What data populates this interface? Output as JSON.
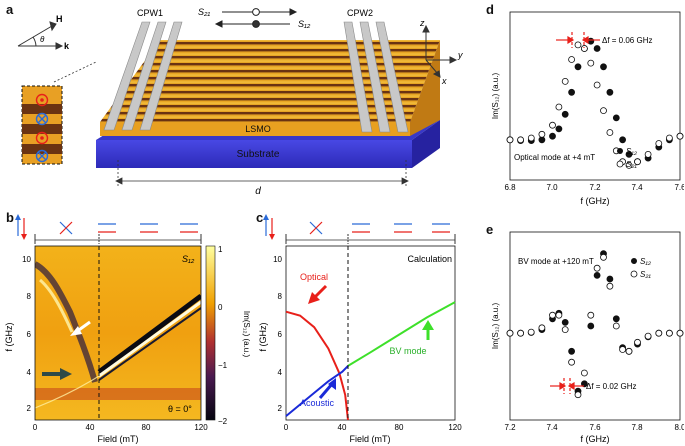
{
  "figure": {
    "panel_labels": [
      "a",
      "b",
      "c",
      "d",
      "e"
    ]
  },
  "panel_a": {
    "cpw1": "CPW1",
    "cpw2": "CPW2",
    "s21": "S₂₁",
    "s12": "S₁₂",
    "lsmo": "LSMO",
    "substrate": "Substrate",
    "distance": "d",
    "vec_h": "H",
    "vec_k": "k",
    "vec_theta": "θ",
    "axis_z": "z",
    "axis_y": "y",
    "axis_x": "x"
  },
  "panel_b": {
    "s12_label": "S₁₂",
    "theta_label": "θ = 0°",
    "xlabel": "Field (mT)",
    "ylabel": "f (GHz)",
    "cbar_label": "Im(S₁₂) (a.u.)",
    "xticks": [
      "0",
      "40",
      "80",
      "120"
    ],
    "yticks": [
      "2",
      "4",
      "6",
      "8",
      "10"
    ],
    "cbar_ticks": [
      "1",
      "0",
      "−1",
      "−2"
    ]
  },
  "panel_c": {
    "calc_label": "Calculation",
    "optical_label": "Optical",
    "acoustic_label": "Acoustic",
    "bv_label": "BV mode",
    "xlabel": "Field (mT)",
    "ylabel": "f (GHz)",
    "xticks": [
      "0",
      "40",
      "80",
      "120"
    ],
    "yticks": [
      "2",
      "4",
      "6",
      "8",
      "10"
    ]
  },
  "panel_d": {
    "delta_label": "Δf = 0.06 GHz",
    "mode_label": "Optical mode at +4 mT",
    "legend_s12": "S₁₂",
    "legend_s21": "S₂₁",
    "xlabel": "f (GHz)",
    "ylabel": "Im(S₁₂) (a.u.)",
    "xticks": [
      "6.8",
      "7.0",
      "7.2",
      "7.4",
      "7.6"
    ]
  },
  "panel_e": {
    "delta_label": "Δf = 0.02 GHz",
    "mode_label": "BV mode at +120 mT",
    "legend_s12": "S₁₂",
    "legend_s21": "S₂₁",
    "xlabel": "f (GHz)",
    "ylabel": "Im(S₁₂) (a.u.)",
    "xticks": [
      "7.2",
      "7.4",
      "7.6",
      "7.8",
      "8.0"
    ]
  },
  "chart_data": [
    {
      "type": "heatmap",
      "panel": "b",
      "xlabel": "Field (mT)",
      "ylabel": "f (GHz)",
      "xlim": [
        0,
        120
      ],
      "ylim": [
        1.5,
        10.5
      ],
      "colorbar": {
        "label": "Im(S₁₂) (a.u.)",
        "range": [
          -2,
          1
        ]
      },
      "annotations": [
        "S₁₂",
        "θ = 0°"
      ],
      "dashed_vline_x": 47
    },
    {
      "type": "line",
      "panel": "c",
      "title": "Calculation",
      "xlabel": "Field (mT)",
      "ylabel": "f (GHz)",
      "xlim": [
        0,
        120
      ],
      "ylim": [
        1.5,
        10.5
      ],
      "series": [
        {
          "name": "Optical",
          "color": "#e8201a",
          "x": [
            0,
            10,
            20,
            30,
            38,
            42,
            44
          ],
          "y": [
            7.1,
            6.9,
            6.3,
            5.2,
            3.9,
            2.8,
            1.5
          ]
        },
        {
          "name": "Acoustic",
          "color": "#1a2ad8",
          "x": [
            0,
            10,
            20,
            30,
            40,
            44
          ],
          "y": [
            1.7,
            2.3,
            2.9,
            3.5,
            4.0,
            4.3
          ]
        },
        {
          "name": "BV mode",
          "color": "#3ee02a",
          "x": [
            44,
            60,
            80,
            100,
            120
          ],
          "y": [
            4.3,
            5.0,
            5.9,
            6.8,
            7.6
          ]
        }
      ],
      "dashed_vline_x": 44
    },
    {
      "type": "scatter",
      "panel": "d",
      "xlabel": "f (GHz)",
      "ylabel": "Im(S₁₂) (a.u.)",
      "xlim": [
        6.8,
        7.6
      ],
      "annotations": [
        "Δf = 0.06 GHz",
        "Optical mode at +4 mT"
      ],
      "series": [
        {
          "name": "S₁₂",
          "filled": true,
          "x": [
            6.8,
            6.85,
            6.9,
            6.95,
            7.0,
            7.03,
            7.06,
            7.09,
            7.12,
            7.15,
            7.18,
            7.21,
            7.24,
            7.27,
            7.3,
            7.33,
            7.36,
            7.4,
            7.45,
            7.5,
            7.55,
            7.6
          ],
          "y": [
            -0.1,
            -0.12,
            -0.12,
            -0.1,
            0.0,
            0.2,
            0.6,
            1.2,
            1.9,
            2.4,
            2.6,
            2.4,
            1.9,
            1.2,
            0.5,
            -0.1,
            -0.5,
            -0.7,
            -0.6,
            -0.3,
            -0.1,
            0.0
          ]
        },
        {
          "name": "S₂₁",
          "filled": false,
          "x": [
            6.8,
            6.85,
            6.9,
            6.95,
            7.0,
            7.03,
            7.06,
            7.09,
            7.12,
            7.15,
            7.18,
            7.21,
            7.24,
            7.27,
            7.3,
            7.33,
            7.36,
            7.4,
            7.45,
            7.5,
            7.55,
            7.6
          ],
          "y": [
            -0.1,
            -0.1,
            -0.05,
            0.05,
            0.3,
            0.8,
            1.5,
            2.1,
            2.5,
            2.4,
            2.0,
            1.4,
            0.7,
            0.1,
            -0.4,
            -0.7,
            -0.8,
            -0.7,
            -0.5,
            -0.2,
            -0.05,
            0.0
          ]
        }
      ]
    },
    {
      "type": "scatter",
      "panel": "e",
      "xlabel": "f (GHz)",
      "ylabel": "Im(S₁₂) (a.u.)",
      "xlim": [
        7.2,
        8.0
      ],
      "annotations": [
        "Δf = 0.02 GHz",
        "BV mode at +120 mT"
      ],
      "series": [
        {
          "name": "S₁₂",
          "filled": true,
          "x": [
            7.2,
            7.25,
            7.3,
            7.35,
            7.4,
            7.43,
            7.46,
            7.49,
            7.52,
            7.55,
            7.58,
            7.61,
            7.64,
            7.67,
            7.7,
            7.73,
            7.76,
            7.8,
            7.85,
            7.9,
            7.95,
            8.0
          ],
          "y": [
            0.0,
            0.0,
            0.02,
            0.1,
            0.4,
            0.55,
            0.3,
            -0.5,
            -1.6,
            -1.4,
            0.2,
            1.6,
            2.2,
            1.5,
            0.4,
            -0.4,
            -0.5,
            -0.3,
            -0.1,
            0.0,
            0.0,
            0.0
          ]
        },
        {
          "name": "S₂₁",
          "filled": false,
          "x": [
            7.2,
            7.25,
            7.3,
            7.35,
            7.4,
            7.43,
            7.46,
            7.49,
            7.52,
            7.55,
            7.58,
            7.61,
            7.64,
            7.67,
            7.7,
            7.73,
            7.76,
            7.8,
            7.85,
            7.9,
            7.95,
            8.0
          ],
          "y": [
            0.0,
            0.0,
            0.03,
            0.15,
            0.5,
            0.5,
            0.1,
            -0.8,
            -1.7,
            -1.1,
            0.5,
            1.8,
            2.1,
            1.3,
            0.2,
            -0.45,
            -0.5,
            -0.25,
            -0.08,
            0.0,
            0.0,
            0.0
          ]
        }
      ]
    }
  ]
}
